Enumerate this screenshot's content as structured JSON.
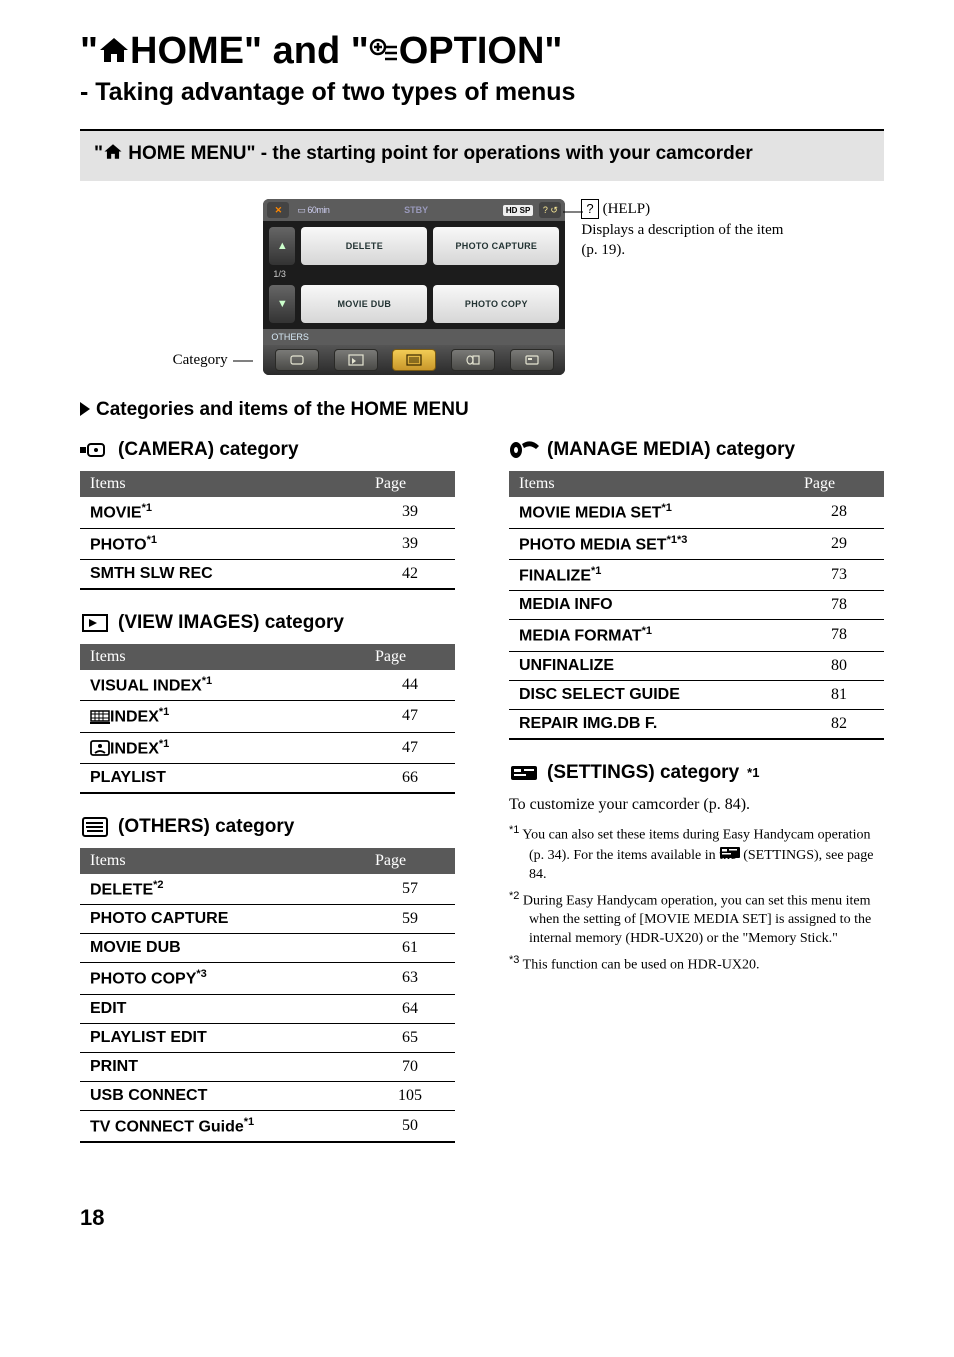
{
  "title_parts": {
    "prefix": "\"",
    "word1": "HOME\" and \"",
    "word2": "OPTION\""
  },
  "subtitle": "- Taking advantage of two types of menus",
  "banner": {
    "prefix": "\"",
    "text": "HOME MENU\" - the starting point for operations with your camcorder"
  },
  "screenshot": {
    "topbar": {
      "batt": "60min",
      "stby": "STBY",
      "hdsp": "HD SP"
    },
    "row1": {
      "btn1": "DELETE",
      "btn2": "PHOTO CAPTURE"
    },
    "frac": "1/3",
    "row2": {
      "btn1": "MOVIE DUB",
      "btn2": "PHOTO COPY"
    },
    "others": "OTHERS"
  },
  "label_category": "Category",
  "callout": {
    "help_label": "(HELP)",
    "text": "Displays a description of the item (p. 19)."
  },
  "sec_head": "Categories and items of the HOME MENU",
  "th_items": "Items",
  "th_page": "Page",
  "camera": {
    "title": "(CAMERA) category",
    "rows": [
      {
        "name": "MOVIE",
        "sup": "*1",
        "page": "39"
      },
      {
        "name": "PHOTO",
        "sup": "*1",
        "page": "39"
      },
      {
        "name": "SMTH SLW REC",
        "sup": "",
        "page": "42"
      }
    ]
  },
  "view": {
    "title": "(VIEW IMAGES) category",
    "rows": [
      {
        "name": "VISUAL INDEX",
        "sup": "*1",
        "page": "44",
        "icon": ""
      },
      {
        "name": "INDEX",
        "sup": "*1",
        "page": "47",
        "icon": "film"
      },
      {
        "name": "INDEX",
        "sup": "*1",
        "page": "47",
        "icon": "face"
      },
      {
        "name": "PLAYLIST",
        "sup": "",
        "page": "66",
        "icon": ""
      }
    ]
  },
  "others": {
    "title": "(OTHERS) category",
    "rows": [
      {
        "name": "DELETE",
        "sup": "*2",
        "page": "57"
      },
      {
        "name": "PHOTO CAPTURE",
        "sup": "",
        "page": "59"
      },
      {
        "name": "MOVIE DUB",
        "sup": "",
        "page": "61"
      },
      {
        "name": "PHOTO COPY",
        "sup": "*3",
        "page": "63"
      },
      {
        "name": "EDIT",
        "sup": "",
        "page": "64"
      },
      {
        "name": "PLAYLIST EDIT",
        "sup": "",
        "page": "65"
      },
      {
        "name": "PRINT",
        "sup": "",
        "page": "70"
      },
      {
        "name": "USB CONNECT",
        "sup": "",
        "page": "105"
      },
      {
        "name": "TV CONNECT Guide",
        "sup": "*1",
        "page": "50"
      }
    ]
  },
  "manage": {
    "title": "(MANAGE MEDIA) category",
    "rows": [
      {
        "name": "MOVIE MEDIA SET",
        "sup": "*1",
        "page": "28"
      },
      {
        "name": "PHOTO MEDIA SET",
        "sup": "*1*3",
        "page": "29"
      },
      {
        "name": "FINALIZE",
        "sup": "*1",
        "page": "73"
      },
      {
        "name": "MEDIA INFO",
        "sup": "",
        "page": "78"
      },
      {
        "name": "MEDIA FORMAT",
        "sup": "*1",
        "page": "78"
      },
      {
        "name": "UNFINALIZE",
        "sup": "",
        "page": "80"
      },
      {
        "name": "DISC SELECT GUIDE",
        "sup": "",
        "page": "81"
      },
      {
        "name": "REPAIR IMG.DB F.",
        "sup": "",
        "page": "82"
      }
    ]
  },
  "settings": {
    "title": "(SETTINGS) category",
    "title_sup": "*1",
    "para": "To customize your camcorder (p. 84).",
    "fn1_pre": "You can also set these items during Easy Handycam operation (p. 34). For the items available in the ",
    "fn1_post": " (SETTINGS), see page 84.",
    "fn2": "During Easy Handycam operation, you can set this menu item when the setting of [MOVIE MEDIA SET] is assigned to the internal memory (HDR-UX20) or the \"Memory Stick.\"",
    "fn3": "This function can be used on HDR-UX20."
  },
  "page_number": "18"
}
